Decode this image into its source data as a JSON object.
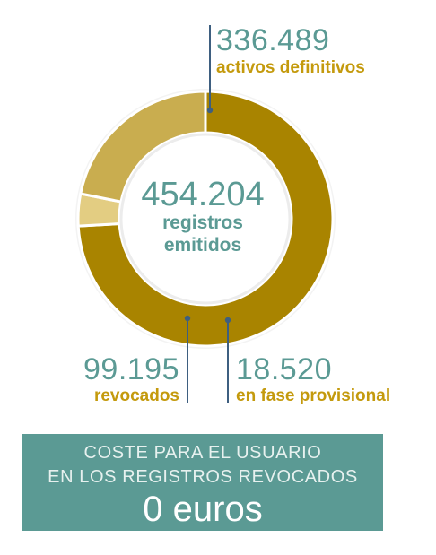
{
  "chart_data": {
    "type": "pie",
    "style": "donut",
    "total": {
      "value": "454.204",
      "label_line1": "registros",
      "label_line2": "emitidos"
    },
    "segments": [
      {
        "name": "activos definitivos",
        "display_value": "336.489",
        "value": 336489,
        "color": "#a98400"
      },
      {
        "name": "en fase provisional",
        "display_value": "18.520",
        "value": 18520,
        "color": "#e3cd82"
      },
      {
        "name": "revocados",
        "display_value": "99.195",
        "value": 99195,
        "color": "#c9ad4f"
      }
    ]
  },
  "colors": {
    "accent_teal": "#5b9a94",
    "label_gold": "#c49a0d",
    "leader_line": "#3e5f80"
  },
  "cost_box": {
    "line1": "COSTE PARA EL USUARIO",
    "line2": "EN LOS REGISTROS REVOCADOS",
    "amount": "0 euros"
  }
}
